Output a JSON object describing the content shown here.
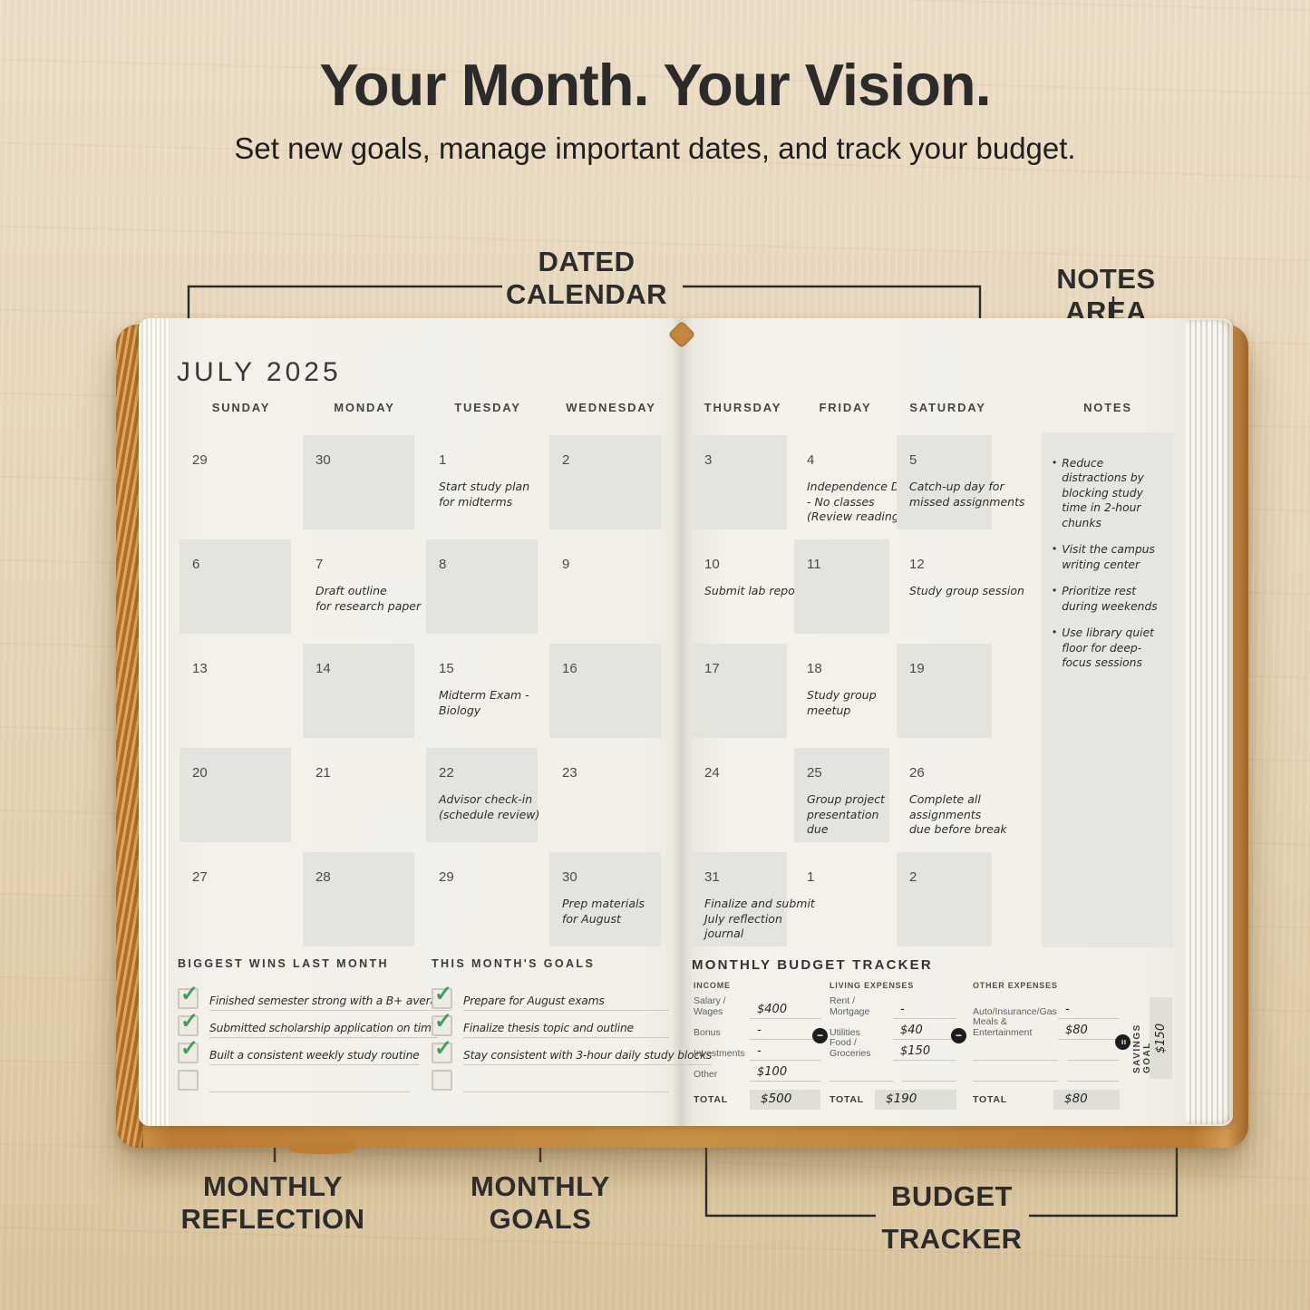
{
  "header": {
    "title": "Your Month. Your Vision.",
    "subtitle": "Set new goals, manage important dates, and track your budget."
  },
  "annotations": {
    "dated_calendar": "DATED\nCALENDAR",
    "notes_area": "NOTES AREA",
    "monthly_reflection": "MONTHLY\nREFLECTION",
    "monthly_goals": "MONTHLY\nGOALS",
    "budget_tracker": "BUDGET\nTRACKER"
  },
  "colors": {
    "cover_accent": "#c4863c",
    "page": "#f2f0e9",
    "cell_shade": "#e4e4de",
    "check_green": "#3f9e57",
    "ink": "#2c2c2c"
  },
  "planner": {
    "month_title": "JULY 2025",
    "left_day_headers": [
      "SUNDAY",
      "MONDAY",
      "TUESDAY",
      "WEDNESDAY"
    ],
    "right_day_headers": [
      "THURSDAY",
      "FRIDAY",
      "SATURDAY"
    ],
    "notes_header": "NOTES",
    "left_cells": [
      {
        "date": "29",
        "shaded": false,
        "note": ""
      },
      {
        "date": "30",
        "shaded": true,
        "note": ""
      },
      {
        "date": "1",
        "shaded": false,
        "note": "Start study plan\nfor midterms"
      },
      {
        "date": "2",
        "shaded": true,
        "note": ""
      },
      {
        "date": "6",
        "shaded": true,
        "note": ""
      },
      {
        "date": "7",
        "shaded": false,
        "note": "Draft outline\nfor research paper"
      },
      {
        "date": "8",
        "shaded": true,
        "note": ""
      },
      {
        "date": "9",
        "shaded": false,
        "note": ""
      },
      {
        "date": "13",
        "shaded": false,
        "note": ""
      },
      {
        "date": "14",
        "shaded": true,
        "note": ""
      },
      {
        "date": "15",
        "shaded": false,
        "note": "Midterm Exam - Biology"
      },
      {
        "date": "16",
        "shaded": true,
        "note": ""
      },
      {
        "date": "20",
        "shaded": true,
        "note": ""
      },
      {
        "date": "21",
        "shaded": false,
        "note": ""
      },
      {
        "date": "22",
        "shaded": true,
        "note": "Advisor check-in\n(schedule review)"
      },
      {
        "date": "23",
        "shaded": false,
        "note": ""
      },
      {
        "date": "27",
        "shaded": false,
        "note": ""
      },
      {
        "date": "28",
        "shaded": true,
        "note": ""
      },
      {
        "date": "29",
        "shaded": false,
        "note": ""
      },
      {
        "date": "30",
        "shaded": true,
        "note": "Prep materials\nfor August"
      }
    ],
    "right_cells": [
      {
        "date": "3",
        "shaded": true,
        "note": ""
      },
      {
        "date": "4",
        "shaded": false,
        "note": "Independence Day\n- No classes\n(Review readings)"
      },
      {
        "date": "5",
        "shaded": true,
        "note": "Catch-up day for\nmissed assignments"
      },
      {
        "date": "10",
        "shaded": false,
        "note": "Submit lab report"
      },
      {
        "date": "11",
        "shaded": true,
        "note": ""
      },
      {
        "date": "12",
        "shaded": false,
        "note": "Study group session"
      },
      {
        "date": "17",
        "shaded": true,
        "note": ""
      },
      {
        "date": "18",
        "shaded": false,
        "note": "Study group meetup"
      },
      {
        "date": "19",
        "shaded": true,
        "note": ""
      },
      {
        "date": "24",
        "shaded": false,
        "note": ""
      },
      {
        "date": "25",
        "shaded": true,
        "note": "Group project\npresentation\ndue"
      },
      {
        "date": "26",
        "shaded": false,
        "note": "Complete all assignments\ndue before break"
      },
      {
        "date": "31",
        "shaded": true,
        "note": "Finalize and submit\nJuly reflection journal"
      },
      {
        "date": "1",
        "shaded": false,
        "note": ""
      },
      {
        "date": "2",
        "shaded": true,
        "note": ""
      }
    ],
    "notes_items": [
      "Reduce distractions by blocking study time in 2-hour chunks",
      "Visit the campus writing center",
      "Prioritize rest during weekends",
      "Use library quiet floor for deep-focus sessions"
    ],
    "reflection": {
      "title": "BIGGEST WINS LAST MONTH",
      "items": [
        {
          "text": "Finished semester strong with a B+ average",
          "checked": true
        },
        {
          "text": "Submitted scholarship application on time",
          "checked": true
        },
        {
          "text": "Built a consistent weekly study routine",
          "checked": true
        },
        {
          "text": "",
          "checked": false
        }
      ]
    },
    "goals": {
      "title": "THIS MONTH'S GOALS",
      "items": [
        {
          "text": "Prepare for August exams",
          "checked": true
        },
        {
          "text": "Finalize thesis topic and outline",
          "checked": true
        },
        {
          "text": "Stay consistent with 3-hour daily study blocks",
          "checked": true
        },
        {
          "text": "",
          "checked": false
        }
      ]
    },
    "budget": {
      "title": "MONTHLY BUDGET TRACKER",
      "icons": {
        "subtract": "−",
        "equals": "="
      },
      "income": {
        "label": "INCOME",
        "rows": [
          {
            "name": "Salary / Wages",
            "value": "$400"
          },
          {
            "name": "Bonus",
            "value": "-"
          },
          {
            "name": "Investments",
            "value": "-"
          },
          {
            "name": "Other",
            "value": "$100"
          }
        ],
        "total_label": "TOTAL",
        "total": "$500"
      },
      "living": {
        "label": "LIVING EXPENSES",
        "rows": [
          {
            "name": "Rent / Mortgage",
            "value": "-"
          },
          {
            "name": "Utilities",
            "value": "$40"
          },
          {
            "name": "Food / Groceries",
            "value": "$150"
          },
          {
            "name": "",
            "value": ""
          }
        ],
        "total_label": "TOTAL",
        "total": "$190"
      },
      "other": {
        "label": "OTHER EXPENSES",
        "rows": [
          {
            "name": "Auto/Insurance/Gas",
            "value": "-"
          },
          {
            "name": "Meals & Entertainment",
            "value": "$80"
          },
          {
            "name": "",
            "value": ""
          },
          {
            "name": "",
            "value": ""
          }
        ],
        "total_label": "TOTAL",
        "total": "$80"
      },
      "savings": {
        "label": "SAVINGS GOAL",
        "value": "$150"
      }
    }
  }
}
